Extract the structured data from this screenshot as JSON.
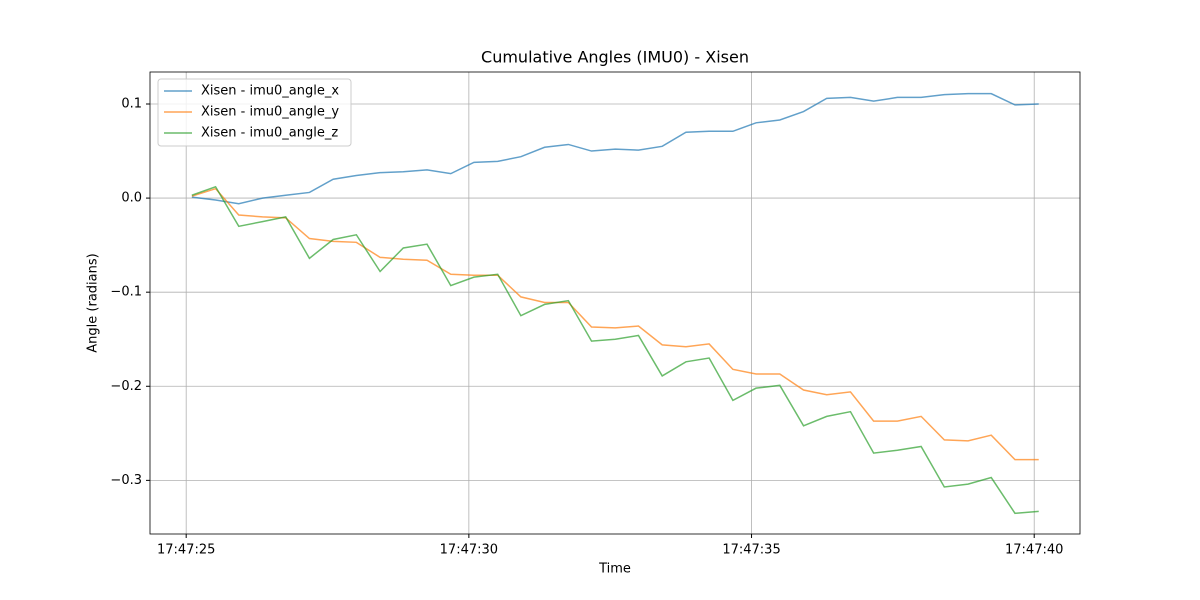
{
  "chart_data": {
    "type": "line",
    "title": "Cumulative Angles (IMU0) - Xisen",
    "xlabel": "Time",
    "ylabel": "Angle (radians)",
    "x": [
      25.1,
      25.52,
      25.93,
      26.35,
      26.76,
      27.18,
      27.6,
      28.01,
      28.43,
      28.84,
      29.26,
      29.68,
      30.09,
      30.51,
      30.92,
      31.34,
      31.76,
      32.17,
      32.59,
      33.0,
      33.42,
      33.84,
      34.25,
      34.67,
      35.08,
      35.5,
      35.92,
      36.33,
      36.75,
      37.16,
      37.58,
      38.0,
      38.41,
      38.83,
      39.24,
      39.66,
      40.08
    ],
    "series": [
      {
        "name": "Xisen - imu0_angle_x",
        "color": "#1f77b4",
        "values": [
          0.001,
          -0.002,
          -0.006,
          0.0,
          0.003,
          0.006,
          0.02,
          0.024,
          0.027,
          0.028,
          0.03,
          0.026,
          0.038,
          0.039,
          0.044,
          0.054,
          0.057,
          0.05,
          0.052,
          0.051,
          0.055,
          0.07,
          0.071,
          0.071,
          0.08,
          0.083,
          0.092,
          0.106,
          0.107,
          0.103,
          0.107,
          0.107,
          0.11,
          0.111,
          0.111,
          0.099,
          0.1
        ]
      },
      {
        "name": "Xisen - imu0_angle_y",
        "color": "#ff7f0e",
        "values": [
          0.002,
          0.01,
          -0.018,
          -0.02,
          -0.021,
          -0.043,
          -0.046,
          -0.047,
          -0.063,
          -0.065,
          -0.066,
          -0.081,
          -0.082,
          -0.082,
          -0.105,
          -0.111,
          -0.111,
          -0.137,
          -0.138,
          -0.136,
          -0.156,
          -0.158,
          -0.155,
          -0.182,
          -0.187,
          -0.187,
          -0.204,
          -0.209,
          -0.206,
          -0.237,
          -0.237,
          -0.232,
          -0.257,
          -0.258,
          -0.252,
          -0.278,
          -0.278
        ]
      },
      {
        "name": "Xisen - imu0_angle_z",
        "color": "#2ca02c",
        "values": [
          0.003,
          0.012,
          -0.03,
          -0.025,
          -0.02,
          -0.064,
          -0.044,
          -0.039,
          -0.078,
          -0.053,
          -0.049,
          -0.093,
          -0.084,
          -0.081,
          -0.125,
          -0.113,
          -0.109,
          -0.152,
          -0.15,
          -0.146,
          -0.189,
          -0.174,
          -0.17,
          -0.215,
          -0.202,
          -0.199,
          -0.242,
          -0.232,
          -0.227,
          -0.271,
          -0.268,
          -0.264,
          -0.307,
          -0.304,
          -0.297,
          -0.335,
          -0.333
        ]
      }
    ],
    "xlim": [
      24.36,
      40.81
    ],
    "xticks": [
      {
        "value": 25,
        "label": "17:47:25"
      },
      {
        "value": 30,
        "label": "17:47:30"
      },
      {
        "value": 35,
        "label": "17:47:35"
      },
      {
        "value": 40,
        "label": "17:47:40"
      }
    ],
    "ylim": [
      -0.357,
      0.134
    ],
    "yticks": [
      {
        "value": -0.3,
        "label": "−0.3"
      },
      {
        "value": -0.2,
        "label": "−0.2"
      },
      {
        "value": -0.1,
        "label": "−0.1"
      },
      {
        "value": 0,
        "label": "0.0"
      },
      0.1
    ],
    "grid": true,
    "legend": "upper-left"
  }
}
